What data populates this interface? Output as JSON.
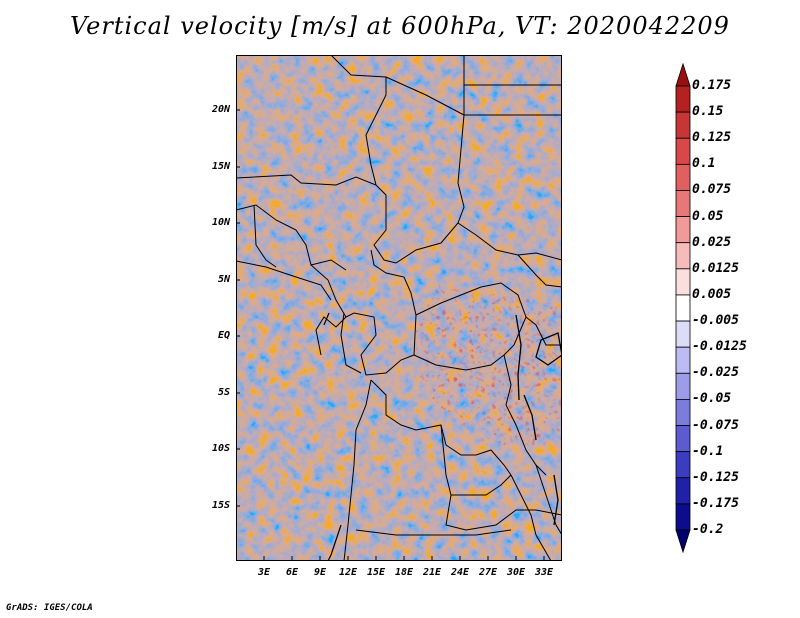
{
  "title": "Vertical velocity [m/s] at 600hPa, VT: 2020042209",
  "credit": "GrADS: IGES/COLA",
  "axes": {
    "y_labels": [
      "20N",
      "15N",
      "10N",
      "5N",
      "EQ",
      "5S",
      "10S",
      "15S"
    ],
    "x_labels": [
      "3E",
      "6E",
      "9E",
      "12E",
      "15E",
      "18E",
      "21E",
      "24E",
      "27E",
      "30E",
      "33E"
    ]
  },
  "colorbar": {
    "labels": [
      "0.175",
      "0.15",
      "0.125",
      "0.1",
      "0.075",
      "0.05",
      "0.025",
      "0.0125",
      "0.005",
      "-0.005",
      "-0.0125",
      "-0.025",
      "-0.05",
      "-0.075",
      "-0.1",
      "-0.125",
      "-0.175",
      "-0.2"
    ],
    "colors": [
      "#9b0f0f",
      "#b52020",
      "#c83535",
      "#d84848",
      "#e06060",
      "#e87878",
      "#f09a9a",
      "#f6bcbc",
      "#fbdede",
      "#ffffff",
      "#dcdcf8",
      "#bcbcf2",
      "#9c9ce8",
      "#7c7cdc",
      "#5c5cd0",
      "#3c3cc0",
      "#2020a8",
      "#0c0c8c",
      "#000070"
    ]
  }
}
